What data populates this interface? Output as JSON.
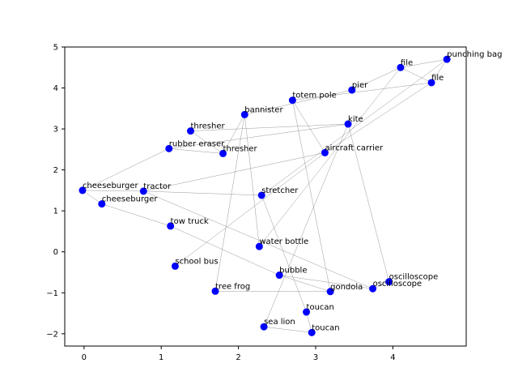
{
  "chart_data": {
    "type": "scatter",
    "title": "",
    "xlabel": "",
    "ylabel": "",
    "xlim": [
      -0.25,
      4.95
    ],
    "ylim": [
      -2.3,
      5.0
    ],
    "xticks": [
      0,
      1,
      2,
      3,
      4
    ],
    "yticks": [
      -2,
      -1,
      0,
      1,
      2,
      3,
      4,
      5
    ],
    "xtick_labels": [
      "0",
      "1",
      "2",
      "3",
      "4"
    ],
    "ytick_labels": [
      "−2",
      "−1",
      "0",
      "1",
      "2",
      "3",
      "4",
      "5"
    ],
    "grid": false,
    "legend": "none",
    "point_color": "#0000ff",
    "edge_color": "#999999",
    "nodes": [
      {
        "label": "punching bag",
        "x": 4.7,
        "y": 4.7
      },
      {
        "label": "file",
        "x": 4.1,
        "y": 4.5
      },
      {
        "label": "file",
        "x": 4.5,
        "y": 4.13
      },
      {
        "label": "pier",
        "x": 3.47,
        "y": 3.95
      },
      {
        "label": "totem pole",
        "x": 2.7,
        "y": 3.7
      },
      {
        "label": "bannister",
        "x": 2.08,
        "y": 3.35
      },
      {
        "label": "kite",
        "x": 3.42,
        "y": 3.12
      },
      {
        "label": "thresher",
        "x": 1.38,
        "y": 2.95
      },
      {
        "label": "rubber eraser",
        "x": 1.1,
        "y": 2.52
      },
      {
        "label": "thresher",
        "x": 1.8,
        "y": 2.4
      },
      {
        "label": "aircraft carrier",
        "x": 3.12,
        "y": 2.42
      },
      {
        "label": "cheeseburger",
        "x": -0.02,
        "y": 1.5
      },
      {
        "label": "tractor",
        "x": 0.77,
        "y": 1.48
      },
      {
        "label": "stretcher",
        "x": 2.3,
        "y": 1.38
      },
      {
        "label": "cheeseburger",
        "x": 0.23,
        "y": 1.17
      },
      {
        "label": "tow truck",
        "x": 1.12,
        "y": 0.63
      },
      {
        "label": "water bottle",
        "x": 2.27,
        "y": 0.13
      },
      {
        "label": "school bus",
        "x": 1.18,
        "y": -0.35
      },
      {
        "label": "bubble",
        "x": 2.53,
        "y": -0.57
      },
      {
        "label": "oscilloscope",
        "x": 3.95,
        "y": -0.73
      },
      {
        "label": "oscilloscope",
        "x": 3.74,
        "y": -0.9
      },
      {
        "label": "tree frog",
        "x": 1.7,
        "y": -0.96
      },
      {
        "label": "gondola",
        "x": 3.19,
        "y": -0.97
      },
      {
        "label": "toucan",
        "x": 2.88,
        "y": -1.47
      },
      {
        "label": "sea lion",
        "x": 2.33,
        "y": -1.83
      },
      {
        "label": "toucan",
        "x": 2.95,
        "y": -1.97
      }
    ],
    "edges": [
      [
        0,
        1
      ],
      [
        0,
        2
      ],
      [
        0,
        13
      ],
      [
        1,
        2
      ],
      [
        1,
        3
      ],
      [
        1,
        16
      ],
      [
        2,
        4
      ],
      [
        2,
        10
      ],
      [
        3,
        5
      ],
      [
        5,
        9
      ],
      [
        5,
        16
      ],
      [
        5,
        21
      ],
      [
        4,
        10
      ],
      [
        4,
        22
      ],
      [
        6,
        7
      ],
      [
        6,
        19
      ],
      [
        7,
        9
      ],
      [
        8,
        9
      ],
      [
        10,
        12
      ],
      [
        10,
        17
      ],
      [
        11,
        12
      ],
      [
        11,
        14
      ],
      [
        11,
        8
      ],
      [
        12,
        13
      ],
      [
        12,
        20
      ],
      [
        13,
        23
      ],
      [
        15,
        18
      ],
      [
        18,
        22
      ],
      [
        18,
        20
      ],
      [
        19,
        20
      ],
      [
        6,
        24
      ],
      [
        24,
        25
      ],
      [
        25,
        23
      ],
      [
        21,
        22
      ],
      [
        14,
        15
      ],
      [
        8,
        6
      ]
    ]
  }
}
